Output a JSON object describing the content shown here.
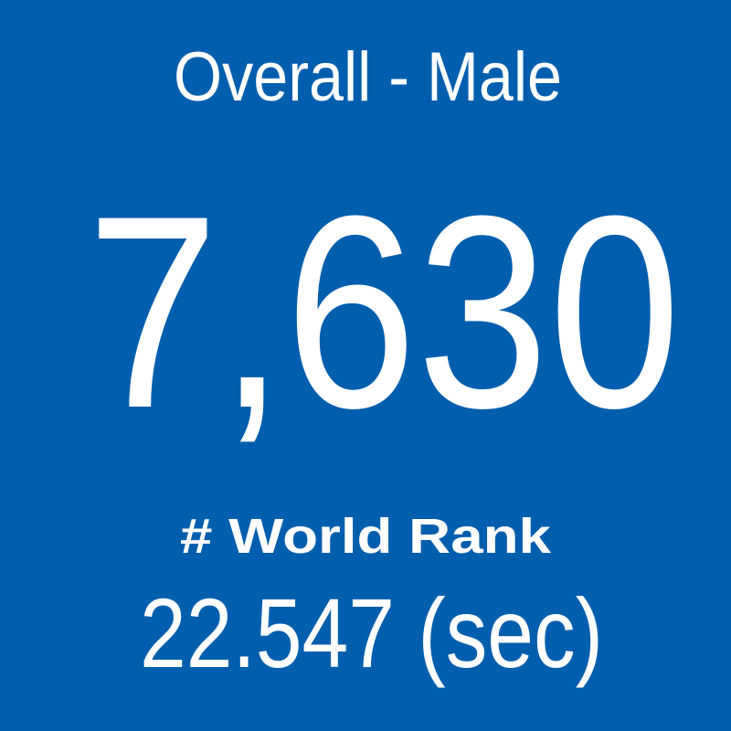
{
  "tile": {
    "category": "Overall - Male",
    "rank": "7,630",
    "label": "# World Rank",
    "time": "22.547 (sec)"
  }
}
